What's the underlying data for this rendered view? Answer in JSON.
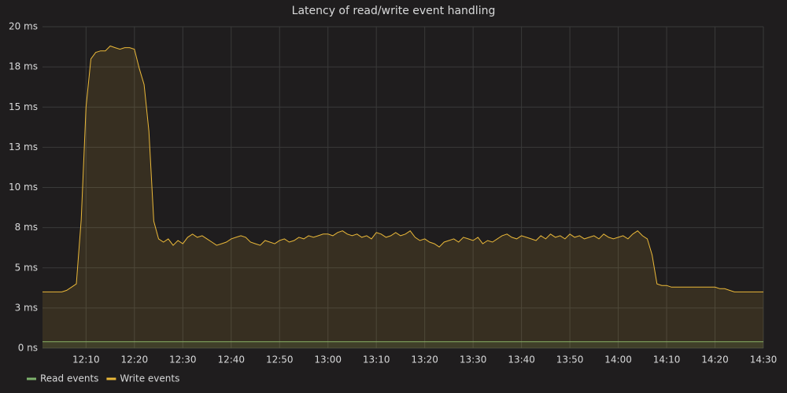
{
  "chart_data": {
    "type": "area",
    "title": "Latency of read/write event handling",
    "x": [
      "12:01",
      "12:02",
      "12:03",
      "12:04",
      "12:05",
      "12:06",
      "12:07",
      "12:08",
      "12:09",
      "12:10",
      "12:11",
      "12:12",
      "12:13",
      "12:14",
      "12:15",
      "12:16",
      "12:17",
      "12:18",
      "12:19",
      "12:20",
      "12:21",
      "12:22",
      "12:23",
      "12:24",
      "12:25",
      "12:26",
      "12:27",
      "12:28",
      "12:29",
      "12:30",
      "12:31",
      "12:32",
      "12:33",
      "12:34",
      "12:35",
      "12:36",
      "12:37",
      "12:38",
      "12:39",
      "12:40",
      "12:41",
      "12:42",
      "12:43",
      "12:44",
      "12:45",
      "12:46",
      "12:47",
      "12:48",
      "12:49",
      "12:50",
      "12:51",
      "12:52",
      "12:53",
      "12:54",
      "12:55",
      "12:56",
      "12:57",
      "12:58",
      "12:59",
      "13:00",
      "13:01",
      "13:02",
      "13:03",
      "13:04",
      "13:05",
      "13:06",
      "13:07",
      "13:08",
      "13:09",
      "13:10",
      "13:11",
      "13:12",
      "13:13",
      "13:14",
      "13:15",
      "13:16",
      "13:17",
      "13:18",
      "13:19",
      "13:20",
      "13:21",
      "13:22",
      "13:23",
      "13:24",
      "13:25",
      "13:26",
      "13:27",
      "13:28",
      "13:29",
      "13:30",
      "13:31",
      "13:32",
      "13:33",
      "13:34",
      "13:35",
      "13:36",
      "13:37",
      "13:38",
      "13:39",
      "13:40",
      "13:41",
      "13:42",
      "13:43",
      "13:44",
      "13:45",
      "13:46",
      "13:47",
      "13:48",
      "13:49",
      "13:50",
      "13:51",
      "13:52",
      "13:53",
      "13:54",
      "13:55",
      "13:56",
      "13:57",
      "13:58",
      "13:59",
      "14:00",
      "14:01",
      "14:02",
      "14:03",
      "14:04",
      "14:05",
      "14:06",
      "14:07",
      "14:08",
      "14:09",
      "14:10",
      "14:11",
      "14:12",
      "14:13",
      "14:14",
      "14:15",
      "14:16",
      "14:17",
      "14:18",
      "14:19",
      "14:20",
      "14:21",
      "14:22",
      "14:23",
      "14:24",
      "14:25",
      "14:26",
      "14:27",
      "14:28",
      "14:29",
      "14:30"
    ],
    "series": [
      {
        "name": "Read events",
        "color": "#7eb26d",
        "values": [
          0.4,
          0.4,
          0.4,
          0.4,
          0.4,
          0.4,
          0.4,
          0.4,
          0.4,
          0.4,
          0.4,
          0.4,
          0.4,
          0.4,
          0.4,
          0.4,
          0.4,
          0.4,
          0.4,
          0.4,
          0.4,
          0.4,
          0.4,
          0.4,
          0.4,
          0.4,
          0.4,
          0.4,
          0.4,
          0.4,
          0.4,
          0.4,
          0.4,
          0.4,
          0.4,
          0.4,
          0.4,
          0.4,
          0.4,
          0.4,
          0.4,
          0.4,
          0.4,
          0.4,
          0.4,
          0.4,
          0.4,
          0.4,
          0.4,
          0.4,
          0.4,
          0.4,
          0.4,
          0.4,
          0.4,
          0.4,
          0.4,
          0.4,
          0.4,
          0.4,
          0.4,
          0.4,
          0.4,
          0.4,
          0.4,
          0.4,
          0.4,
          0.4,
          0.4,
          0.4,
          0.4,
          0.4,
          0.4,
          0.4,
          0.4,
          0.4,
          0.4,
          0.4,
          0.4,
          0.4,
          0.4,
          0.4,
          0.4,
          0.4,
          0.4,
          0.4,
          0.4,
          0.4,
          0.4,
          0.4,
          0.4,
          0.4,
          0.4,
          0.4,
          0.4,
          0.4,
          0.4,
          0.4,
          0.4,
          0.4,
          0.4,
          0.4,
          0.4,
          0.4,
          0.4,
          0.4,
          0.4,
          0.4,
          0.4,
          0.4,
          0.4,
          0.4,
          0.4,
          0.4,
          0.4,
          0.4,
          0.4,
          0.4,
          0.4,
          0.4,
          0.4,
          0.4,
          0.4,
          0.4,
          0.4,
          0.4,
          0.4,
          0.4,
          0.4,
          0.4,
          0.4,
          0.4,
          0.4,
          0.4,
          0.4,
          0.4,
          0.4,
          0.4,
          0.4,
          0.4,
          0.4,
          0.4,
          0.4,
          0.4,
          0.4,
          0.4,
          0.4,
          0.4,
          0.4,
          0.4
        ]
      },
      {
        "name": "Write events",
        "color": "#eab839",
        "values": [
          3.5,
          3.5,
          3.5,
          3.5,
          3.5,
          3.6,
          3.8,
          4.0,
          8.0,
          15.0,
          18.0,
          18.4,
          18.5,
          18.5,
          18.8,
          18.7,
          18.6,
          18.7,
          18.7,
          18.6,
          17.4,
          16.4,
          13.5,
          7.9,
          6.8,
          6.6,
          6.8,
          6.4,
          6.7,
          6.5,
          6.9,
          7.1,
          6.9,
          7.0,
          6.8,
          6.6,
          6.4,
          6.5,
          6.6,
          6.8,
          6.9,
          7.0,
          6.9,
          6.6,
          6.5,
          6.4,
          6.7,
          6.6,
          6.5,
          6.7,
          6.8,
          6.6,
          6.7,
          6.9,
          6.8,
          7.0,
          6.9,
          7.0,
          7.1,
          7.1,
          7.0,
          7.2,
          7.3,
          7.1,
          7.0,
          7.1,
          6.9,
          7.0,
          6.8,
          7.2,
          7.1,
          6.9,
          7.0,
          7.2,
          7.0,
          7.1,
          7.3,
          6.9,
          6.7,
          6.8,
          6.6,
          6.5,
          6.3,
          6.6,
          6.7,
          6.8,
          6.6,
          6.9,
          6.8,
          6.7,
          6.9,
          6.5,
          6.7,
          6.6,
          6.8,
          7.0,
          7.1,
          6.9,
          6.8,
          7.0,
          6.9,
          6.8,
          6.7,
          7.0,
          6.8,
          7.1,
          6.9,
          7.0,
          6.8,
          7.1,
          6.9,
          7.0,
          6.8,
          6.9,
          7.0,
          6.8,
          7.1,
          6.9,
          6.8,
          6.9,
          7.0,
          6.8,
          7.1,
          7.3,
          7.0,
          6.8,
          5.8,
          4.0,
          3.9,
          3.9,
          3.8,
          3.8,
          3.8,
          3.8,
          3.8,
          3.8,
          3.8,
          3.8,
          3.8,
          3.8,
          3.7,
          3.7,
          3.6,
          3.5,
          3.5,
          3.5,
          3.5,
          3.5,
          3.5,
          3.5
        ]
      }
    ],
    "xlim": [
      "12:01",
      "14:30"
    ],
    "xticks": [
      "12:10",
      "12:20",
      "12:30",
      "12:40",
      "12:50",
      "13:00",
      "13:10",
      "13:20",
      "13:30",
      "13:40",
      "13:50",
      "14:00",
      "14:10",
      "14:20",
      "14:30"
    ],
    "ylim": [
      0,
      20
    ],
    "yticks": [
      {
        "value": 0,
        "label": "0 ns"
      },
      {
        "value": 2.5,
        "label": "3 ms"
      },
      {
        "value": 5,
        "label": "5 ms"
      },
      {
        "value": 7.5,
        "label": "8 ms"
      },
      {
        "value": 10,
        "label": "10 ms"
      },
      {
        "value": 12.5,
        "label": "13 ms"
      },
      {
        "value": 15,
        "label": "15 ms"
      },
      {
        "value": 17.5,
        "label": "18 ms"
      },
      {
        "value": 20,
        "label": "20 ms"
      }
    ],
    "grid": true,
    "legend": "bottom-left"
  }
}
